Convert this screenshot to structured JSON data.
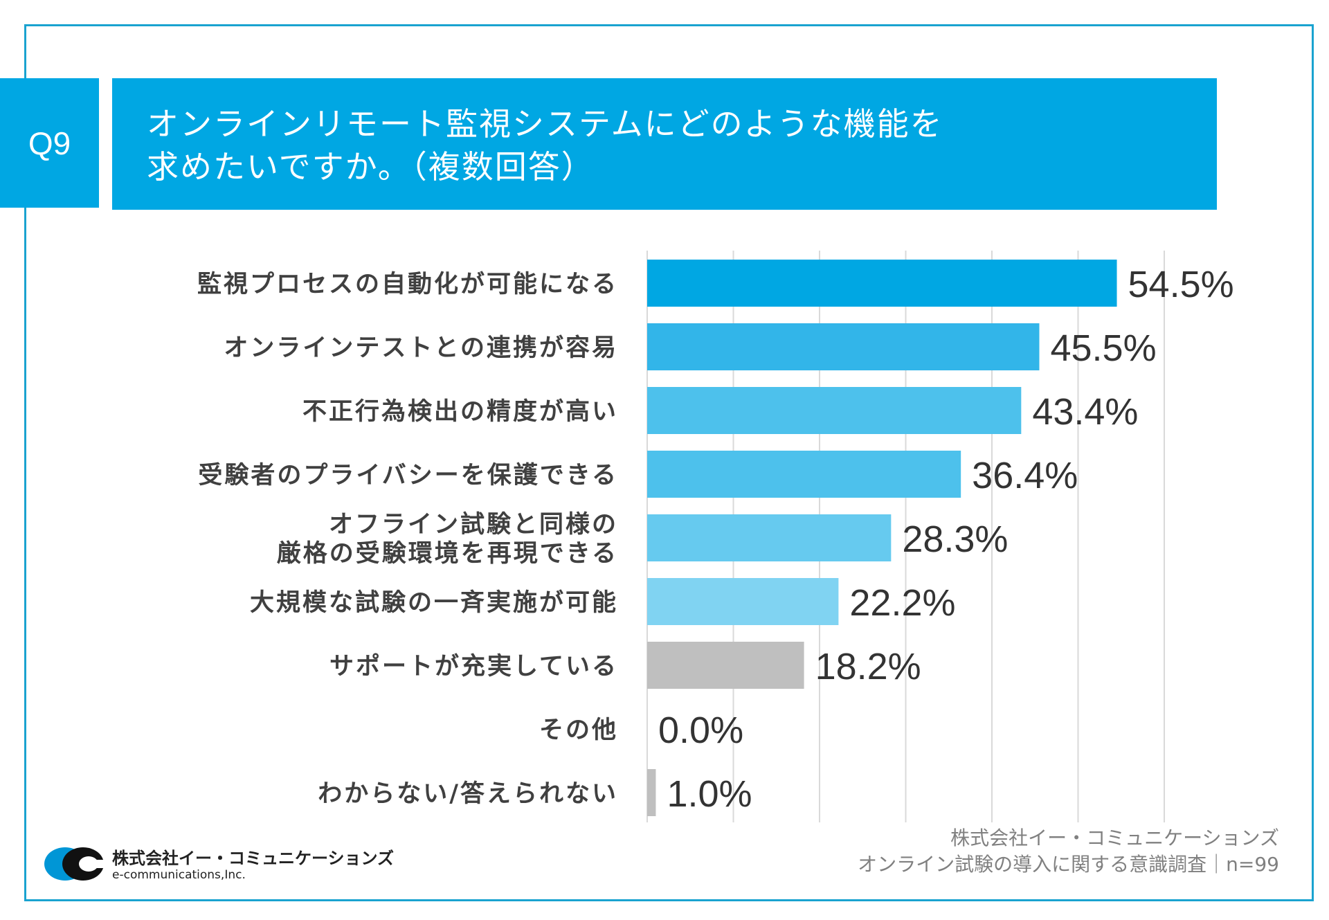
{
  "header": {
    "q_number": "Q9",
    "title_line1": "オンラインリモート監視システムにどのような機能を",
    "title_line2": "求めたいですか。（複数回答）"
  },
  "chart_data": {
    "type": "bar",
    "orientation": "horizontal",
    "categories": [
      "監視プロセスの自動化が可能になる",
      "オンラインテストとの連携が容易",
      "不正行為検出の精度が高い",
      "受験者のプライバシーを保護できる",
      "オフライン試験と同様の\n厳格の受験環境を再現できる",
      "大規模な試験の一斉実施が可能",
      "サポートが充実している",
      "その他",
      "わからない/答えられない"
    ],
    "values": [
      54.5,
      45.5,
      43.4,
      36.4,
      28.3,
      22.2,
      18.2,
      0.0,
      1.0
    ],
    "value_labels": [
      "54.5%",
      "45.5%",
      "43.4%",
      "36.4%",
      "28.3%",
      "22.2%",
      "18.2%",
      "0.0%",
      "1.0%"
    ],
    "colors": [
      "#00a7e3",
      "#32b5e9",
      "#4dc1ec",
      "#4dc1ec",
      "#66caef",
      "#80d3f2",
      "#bfbfbf",
      "#bfbfbf",
      "#bfbfbf"
    ],
    "xlim": [
      0,
      60
    ],
    "grid": true
  },
  "footer": {
    "source_line1": "株式会社イー・コミュニケーションズ",
    "source_line2": "オンライン試験の導入に関する意識調査｜n=99",
    "logo_name": "株式会社イー・コミュニケーションズ",
    "logo_sub": "e-communications,Inc.",
    "logo_small": "e-communications"
  }
}
